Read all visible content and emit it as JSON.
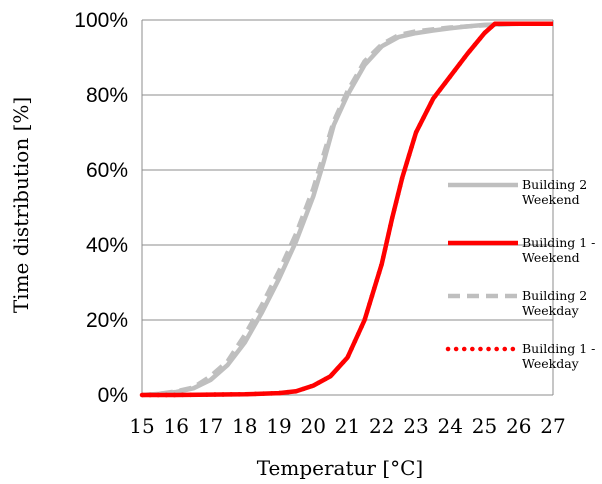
{
  "chart_data": {
    "type": "line",
    "xlabel": "Temperatur [°C]",
    "ylabel": "Time distribution [%]",
    "xlim": [
      15,
      27
    ],
    "ylim": [
      0,
      100
    ],
    "x_ticks": [
      "15",
      "16",
      "17",
      "18",
      "19",
      "20",
      "21",
      "22",
      "23",
      "24",
      "25",
      "26",
      "27"
    ],
    "y_ticks": [
      "0%",
      "20%",
      "40%",
      "60%",
      "80%",
      "100%"
    ],
    "grid": "horizontal",
    "legend": "right",
    "series": [
      {
        "name": "Building 2 Weekend",
        "legend_lines": [
          "Building 2",
          "Weekend"
        ],
        "color": "#bfbfbf",
        "style": "solid",
        "points": [
          [
            15,
            0
          ],
          [
            15.5,
            0.3
          ],
          [
            16,
            0.8
          ],
          [
            16.5,
            1.8
          ],
          [
            17,
            4
          ],
          [
            17.5,
            8
          ],
          [
            18,
            14
          ],
          [
            18.5,
            22
          ],
          [
            19,
            31
          ],
          [
            19.5,
            41
          ],
          [
            20,
            53
          ],
          [
            20.3,
            62
          ],
          [
            20.6,
            72
          ],
          [
            21,
            80
          ],
          [
            21.5,
            88
          ],
          [
            22,
            93
          ],
          [
            22.5,
            95.5
          ],
          [
            23,
            96.5
          ],
          [
            23.5,
            97.2
          ],
          [
            24,
            97.8
          ],
          [
            24.5,
            98.3
          ],
          [
            25,
            98.7
          ],
          [
            26,
            99
          ],
          [
            27,
            99
          ]
        ]
      },
      {
        "name": "Building 1 - Weekend",
        "legend_lines": [
          "Building 1 -",
          "Weekend"
        ],
        "color": "#ff0000",
        "style": "solid",
        "points": [
          [
            15,
            0
          ],
          [
            16,
            0
          ],
          [
            17,
            0.1
          ],
          [
            18,
            0.2
          ],
          [
            19,
            0.5
          ],
          [
            19.5,
            1
          ],
          [
            20,
            2.5
          ],
          [
            20.5,
            5
          ],
          [
            21,
            10
          ],
          [
            21.5,
            20
          ],
          [
            22,
            35
          ],
          [
            22.3,
            47
          ],
          [
            22.6,
            58
          ],
          [
            23,
            70
          ],
          [
            23.5,
            79
          ],
          [
            24,
            85
          ],
          [
            24.5,
            91
          ],
          [
            25,
            96.5
          ],
          [
            25.3,
            99
          ],
          [
            26,
            99
          ],
          [
            27,
            99
          ]
        ]
      },
      {
        "name": "Building 2 Weekday",
        "legend_lines": [
          "Building 2",
          "Weekday"
        ],
        "color": "#bfbfbf",
        "style": "dashed",
        "points": [
          [
            15,
            0
          ],
          [
            15.5,
            0.3
          ],
          [
            16,
            1
          ],
          [
            16.5,
            2
          ],
          [
            17,
            5
          ],
          [
            17.5,
            9
          ],
          [
            18,
            16
          ],
          [
            18.5,
            24
          ],
          [
            19,
            33
          ],
          [
            19.5,
            43
          ],
          [
            20,
            55
          ],
          [
            20.3,
            64
          ],
          [
            20.6,
            73
          ],
          [
            21,
            81
          ],
          [
            21.5,
            89
          ],
          [
            22,
            93.5
          ],
          [
            22.5,
            96
          ],
          [
            23,
            97
          ],
          [
            23.5,
            97.5
          ],
          [
            24,
            98
          ],
          [
            25,
            98.6
          ],
          [
            26,
            99
          ],
          [
            27,
            99
          ]
        ]
      },
      {
        "name": "Building 1 - Weekday",
        "legend_lines": [
          "Building 1 -",
          "Weekday"
        ],
        "color": "#ff0000",
        "style": "dotted",
        "points": [
          [
            15,
            0
          ],
          [
            16,
            0
          ],
          [
            17,
            0.1
          ],
          [
            18,
            0.2
          ],
          [
            19,
            0.5
          ],
          [
            19.5,
            1
          ],
          [
            20,
            2.5
          ],
          [
            20.5,
            5
          ],
          [
            21,
            10
          ],
          [
            21.5,
            20
          ],
          [
            22,
            35
          ],
          [
            22.3,
            47
          ],
          [
            22.6,
            58
          ],
          [
            23,
            70
          ],
          [
            23.5,
            79
          ],
          [
            24,
            85
          ],
          [
            24.5,
            91
          ],
          [
            25,
            96.5
          ],
          [
            25.3,
            99
          ],
          [
            26,
            99
          ],
          [
            27,
            99
          ]
        ]
      }
    ]
  }
}
